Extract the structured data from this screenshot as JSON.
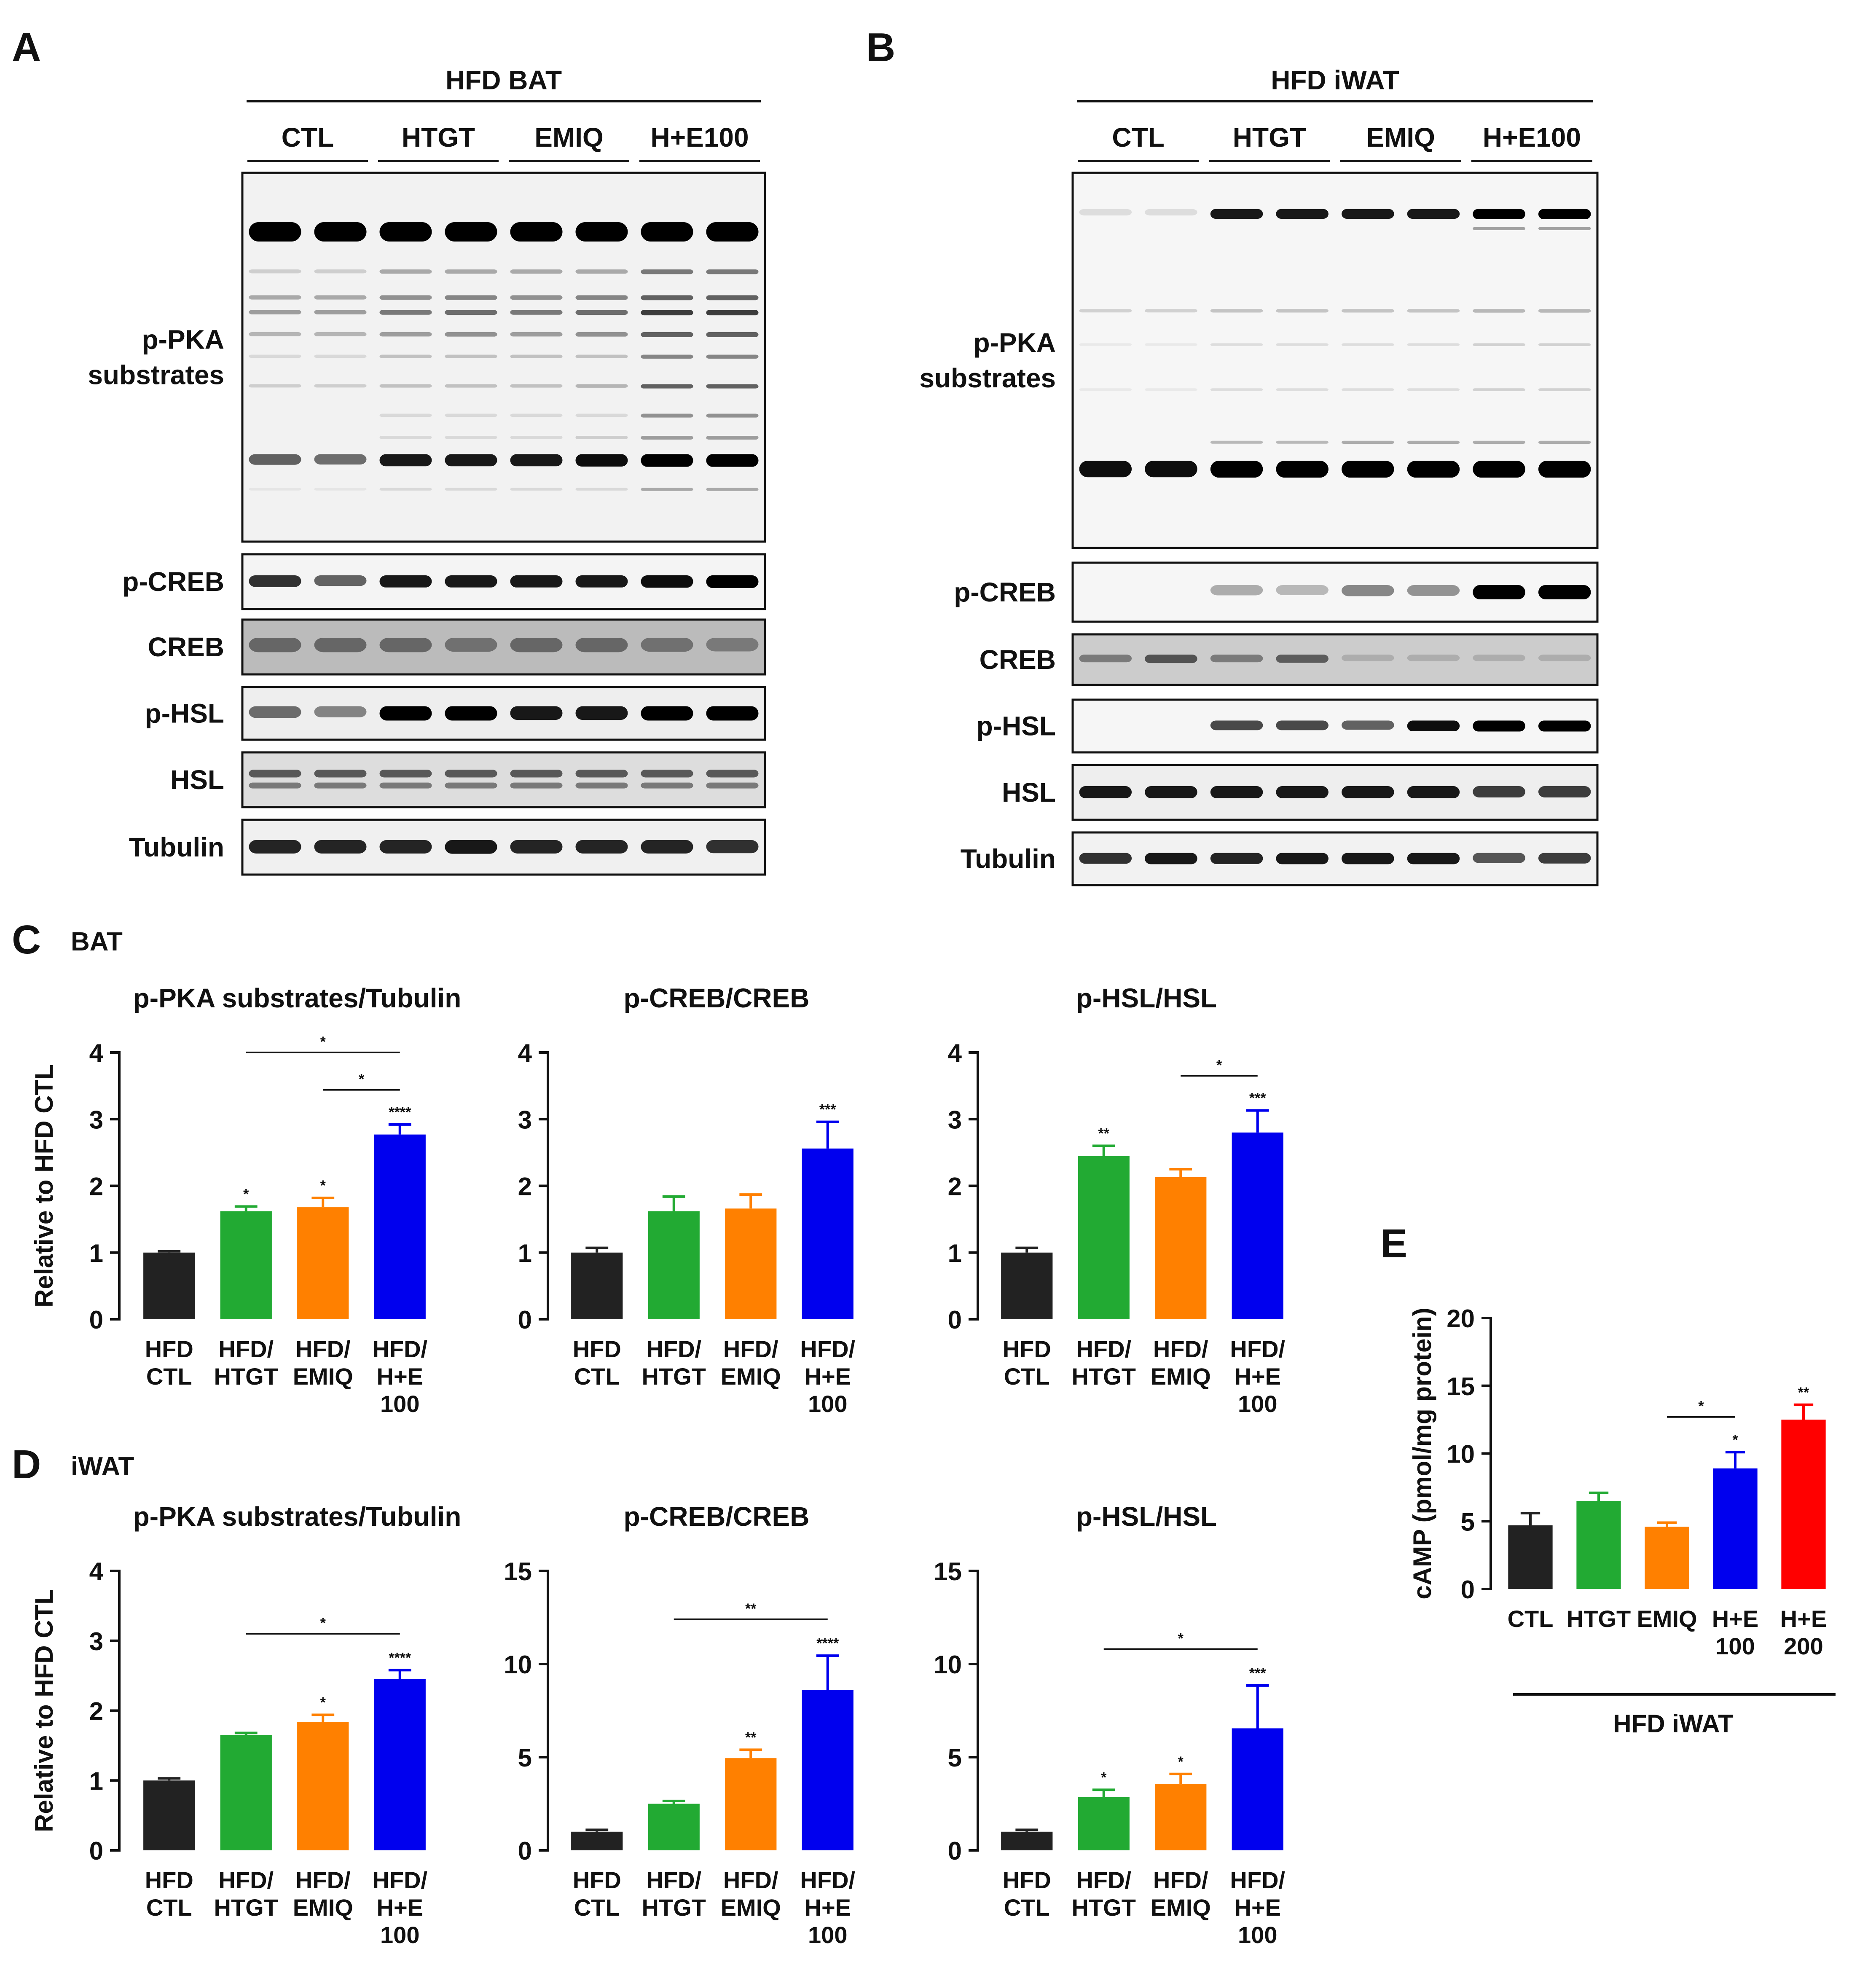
{
  "palette": {
    "ctl": "#222222",
    "htgt": "#22aa33",
    "emiq": "#ff8000",
    "he100": "#0000ee",
    "he200": "#ff0000",
    "axis": "#111111"
  },
  "panels": {
    "A": {
      "letter": "A",
      "header": "HFD BAT",
      "groups": [
        "CTL",
        "HTGT",
        "EMIQ",
        "H+E100"
      ],
      "blot_labels": [
        [
          "p-PKA",
          "substrates"
        ],
        [
          "p-CREB"
        ],
        [
          "CREB"
        ],
        [
          "p-HSL"
        ],
        [
          "HSL"
        ],
        [
          "Tubulin"
        ]
      ]
    },
    "B": {
      "letter": "B",
      "header": "HFD iWAT",
      "groups": [
        "CTL",
        "HTGT",
        "EMIQ",
        "H+E100"
      ],
      "blot_labels": [
        [
          "p-PKA",
          "substrates"
        ],
        [
          "p-CREB"
        ],
        [
          "CREB"
        ],
        [
          "p-HSL"
        ],
        [
          "HSL"
        ],
        [
          "Tubulin"
        ]
      ]
    },
    "C": {
      "letter": "C",
      "tissue": "BAT"
    },
    "D": {
      "letter": "D",
      "tissue": "iWAT"
    },
    "E": {
      "letter": "E"
    }
  },
  "chart_data": [
    {
      "id": "C1",
      "type": "bar",
      "title": "p-PKA substrates/Tubulin",
      "ylabel": "Relative to HFD CTL",
      "ylim": [
        0,
        4
      ],
      "yticks": [
        0,
        1,
        2,
        3,
        4
      ],
      "categories": [
        [
          "HFD",
          "CTL"
        ],
        [
          "HFD/",
          "HTGT"
        ],
        [
          "HFD/",
          "EMIQ"
        ],
        [
          "HFD/",
          "H+E",
          "100"
        ]
      ],
      "values": [
        1.0,
        1.62,
        1.68,
        2.77
      ],
      "errors": [
        0.02,
        0.07,
        0.14,
        0.15
      ],
      "sig": [
        "",
        "*",
        "*",
        "****"
      ],
      "brackets": [
        {
          "from": 2,
          "to": 3,
          "label": "*"
        },
        {
          "from": 1,
          "to": 3,
          "label": "*"
        }
      ]
    },
    {
      "id": "C2",
      "type": "bar",
      "title": "p-CREB/CREB",
      "ylabel": "",
      "ylim": [
        0,
        4
      ],
      "yticks": [
        0,
        1,
        2,
        3,
        4
      ],
      "categories": [
        [
          "HFD",
          "CTL"
        ],
        [
          "HFD/",
          "HTGT"
        ],
        [
          "HFD/",
          "EMIQ"
        ],
        [
          "HFD/",
          "H+E",
          "100"
        ]
      ],
      "values": [
        1.0,
        1.62,
        1.66,
        2.56
      ],
      "errors": [
        0.07,
        0.22,
        0.21,
        0.4
      ],
      "sig": [
        "",
        "",
        "",
        "***"
      ],
      "brackets": []
    },
    {
      "id": "C3",
      "type": "bar",
      "title": "p-HSL/HSL",
      "ylabel": "",
      "ylim": [
        0,
        4
      ],
      "yticks": [
        0,
        1,
        2,
        3,
        4
      ],
      "categories": [
        [
          "HFD",
          "CTL"
        ],
        [
          "HFD/",
          "HTGT"
        ],
        [
          "HFD/",
          "EMIQ"
        ],
        [
          "HFD/",
          "H+E",
          "100"
        ]
      ],
      "values": [
        1.0,
        2.45,
        2.13,
        2.8
      ],
      "errors": [
        0.07,
        0.15,
        0.12,
        0.33
      ],
      "sig": [
        "",
        "**",
        "",
        "***"
      ],
      "brackets": [
        {
          "from": 2,
          "to": 3,
          "label": "*"
        }
      ]
    },
    {
      "id": "D1",
      "type": "bar",
      "title": "p-PKA substrates/Tubulin",
      "ylabel": "Relative to HFD CTL",
      "ylim": [
        0,
        4
      ],
      "yticks": [
        0,
        1,
        2,
        3,
        4
      ],
      "categories": [
        [
          "HFD",
          "CTL"
        ],
        [
          "HFD/",
          "HTGT"
        ],
        [
          "HFD/",
          "EMIQ"
        ],
        [
          "HFD/",
          "H+E",
          "100"
        ]
      ],
      "values": [
        1.0,
        1.65,
        1.84,
        2.45
      ],
      "errors": [
        0.03,
        0.03,
        0.1,
        0.13
      ],
      "sig": [
        "",
        "",
        "*",
        "****"
      ],
      "brackets": [
        {
          "from": 1,
          "to": 3,
          "label": "*"
        }
      ]
    },
    {
      "id": "D2",
      "type": "bar",
      "title": "p-CREB/CREB",
      "ylabel": "",
      "ylim": [
        0,
        15
      ],
      "yticks": [
        0,
        5,
        10,
        15
      ],
      "categories": [
        [
          "HFD",
          "CTL"
        ],
        [
          "HFD/",
          "HTGT"
        ],
        [
          "HFD/",
          "EMIQ"
        ],
        [
          "HFD/",
          "H+E",
          "100"
        ]
      ],
      "values": [
        1.0,
        2.5,
        4.95,
        8.6
      ],
      "errors": [
        0.1,
        0.15,
        0.45,
        1.85
      ],
      "sig": [
        "",
        "",
        "**",
        "****"
      ],
      "brackets": [
        {
          "from": 1,
          "to": 3,
          "label": "**"
        }
      ]
    },
    {
      "id": "D3",
      "type": "bar",
      "title": "p-HSL/HSL",
      "ylabel": "",
      "ylim": [
        0,
        15
      ],
      "yticks": [
        0,
        5,
        10,
        15
      ],
      "categories": [
        [
          "HFD",
          "CTL"
        ],
        [
          "HFD/",
          "HTGT"
        ],
        [
          "HFD/",
          "EMIQ"
        ],
        [
          "HFD/",
          "H+E",
          "100"
        ]
      ],
      "values": [
        1.0,
        2.85,
        3.55,
        6.55
      ],
      "errors": [
        0.1,
        0.4,
        0.55,
        2.3
      ],
      "sig": [
        "",
        "*",
        "*",
        "***"
      ],
      "brackets": [
        {
          "from": 1,
          "to": 3,
          "label": "*"
        }
      ]
    },
    {
      "id": "E",
      "type": "bar",
      "title": "",
      "ylabel": "cAMP (pmol/mg protein)",
      "xgroup_label": "HFD iWAT",
      "ylim": [
        0,
        20
      ],
      "yticks": [
        0,
        5,
        10,
        15,
        20
      ],
      "categories": [
        [
          "CTL"
        ],
        [
          "HTGT"
        ],
        [
          "EMIQ"
        ],
        [
          "H+E",
          "100"
        ],
        [
          "H+E",
          "200"
        ]
      ],
      "values": [
        4.7,
        6.5,
        4.6,
        8.9,
        12.5
      ],
      "errors": [
        0.9,
        0.6,
        0.3,
        1.2,
        1.1
      ],
      "sig": [
        "",
        "",
        "",
        "*",
        "**"
      ],
      "brackets": [
        {
          "from": 2,
          "to": 3,
          "label": "*"
        }
      ]
    }
  ]
}
